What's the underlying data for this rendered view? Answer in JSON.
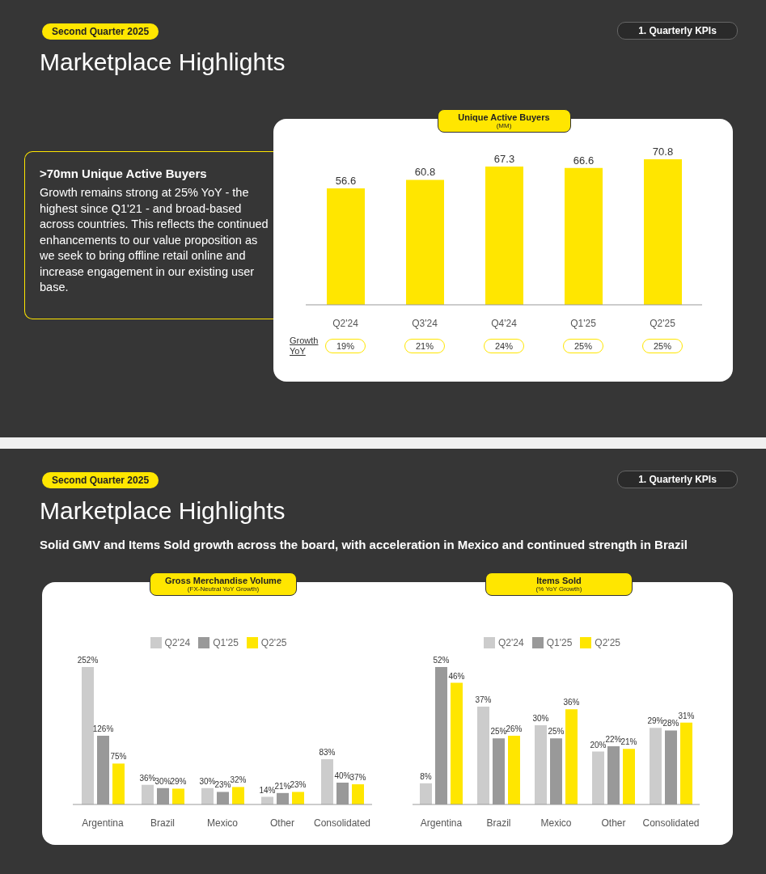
{
  "chart_data": [
    {
      "type": "other",
      "title": "Marketplace Highlights",
      "annotations": [
        "Second Quarter 2025",
        "1. Quarterly KPIs",
        ">70mn Unique Active Buyers",
        "Growth remains strong at 25% YoY - the highest since Q1'21 - and broad-based across countries. This reflects the continued enhancements to our value proposition as we seek to bring offline retail online and increase engagement in our existing user base."
      ]
    },
    {
      "type": "bar",
      "title": "Unique Active Buyers",
      "subtitle": "(MM)",
      "categories": [
        "Q2'24",
        "Q3'24",
        "Q4'24",
        "Q1'25",
        "Q2'25"
      ],
      "values": [
        56.6,
        60.8,
        67.3,
        66.6,
        70.8
      ],
      "color": "#ffe600",
      "data_labels": true,
      "annotations": [
        "Growth YoY",
        "19%",
        "21%",
        "24%",
        "25%",
        "25%"
      ]
    },
    {
      "type": "other",
      "title": "Marketplace Highlights",
      "subtitle": "Solid GMV and Items Sold growth across the board, with acceleration in Mexico and continued strength in Brazil",
      "annotations": [
        "Second Quarter 2025",
        "1. Quarterly KPIs"
      ]
    },
    {
      "type": "bar",
      "title": "Gross Merchandise Volume",
      "subtitle": "(FX-Neutral YoY Growth)",
      "categories": [
        "Argentina",
        "Brazil",
        "Mexico",
        "Other",
        "Consolidated"
      ],
      "legend": "top",
      "series": [
        {
          "name": "Q2'24",
          "color": "#cccccc",
          "values": [
            252,
            36,
            30,
            14,
            83
          ],
          "value_labels": [
            "252%",
            "36%",
            "30%",
            "14%",
            "83%"
          ]
        },
        {
          "name": "Q1'25",
          "color": "#999999",
          "values": [
            126,
            30,
            23,
            21,
            40
          ],
          "value_labels": [
            "126%",
            "30%",
            "23%",
            "21%",
            "40%"
          ]
        },
        {
          "name": "Q2'25",
          "color": "#ffe600",
          "values": [
            75,
            29,
            32,
            23,
            37
          ],
          "value_labels": [
            "75%",
            "29%",
            "32%",
            "23%",
            "37%"
          ]
        }
      ]
    },
    {
      "type": "bar",
      "title": "Items Sold",
      "subtitle": "(% YoY Growth)",
      "categories": [
        "Argentina",
        "Brazil",
        "Mexico",
        "Other",
        "Consolidated"
      ],
      "legend": "top",
      "series": [
        {
          "name": "Q2'24",
          "color": "#cccccc",
          "values": [
            8,
            37,
            30,
            20,
            29
          ],
          "value_labels": [
            "8%",
            "37%",
            "30%",
            "20%",
            "29%"
          ]
        },
        {
          "name": "Q1'25",
          "color": "#999999",
          "values": [
            52,
            25,
            25,
            22,
            28
          ],
          "value_labels": [
            "52%",
            "25%",
            "25%",
            "22%",
            "28%"
          ]
        },
        {
          "name": "Q2'25",
          "color": "#ffe600",
          "values": [
            46,
            26,
            36,
            21,
            31
          ],
          "value_labels": [
            "46%",
            "26%",
            "36%",
            "21%",
            "31%"
          ]
        }
      ]
    }
  ]
}
